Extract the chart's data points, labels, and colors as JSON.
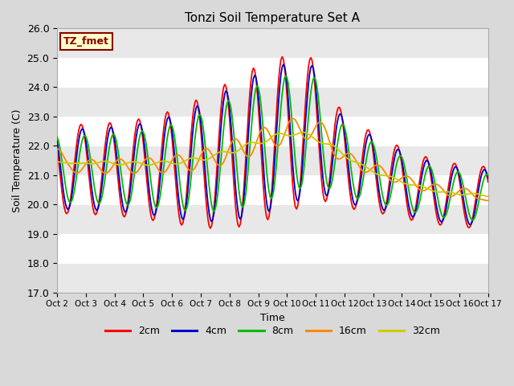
{
  "title": "Tonzi Soil Temperature Set A",
  "xlabel": "Time",
  "ylabel": "Soil Temperature (C)",
  "ylim": [
    17.0,
    26.0
  ],
  "yticks": [
    17.0,
    18.0,
    19.0,
    20.0,
    21.0,
    22.0,
    23.0,
    24.0,
    25.0,
    26.0
  ],
  "xtick_labels": [
    "Oct 2",
    "Oct 3",
    "Oct 4",
    "Oct 5",
    "Oct 6",
    "Oct 7",
    "Oct 8",
    "Oct 9",
    "Oct 10",
    "Oct 11",
    "Oct 12",
    "Oct 13",
    "Oct 14",
    "Oct 15",
    "Oct 16",
    "Oct 17"
  ],
  "annotation_text": "TZ_fmet",
  "annotation_color": "#8b0000",
  "annotation_bg": "#ffffcc",
  "annotation_border": "#8b0000",
  "bg_color": "#d9d9d9",
  "plot_bg": "#ffffff",
  "band_color": "#e8e8e8",
  "line_colors": [
    "#ff0000",
    "#0000cc",
    "#00bb00",
    "#ff8800",
    "#cccc00"
  ],
  "line_labels": [
    "2cm",
    "4cm",
    "8cm",
    "16cm",
    "32cm"
  ],
  "line_width": 1.3
}
